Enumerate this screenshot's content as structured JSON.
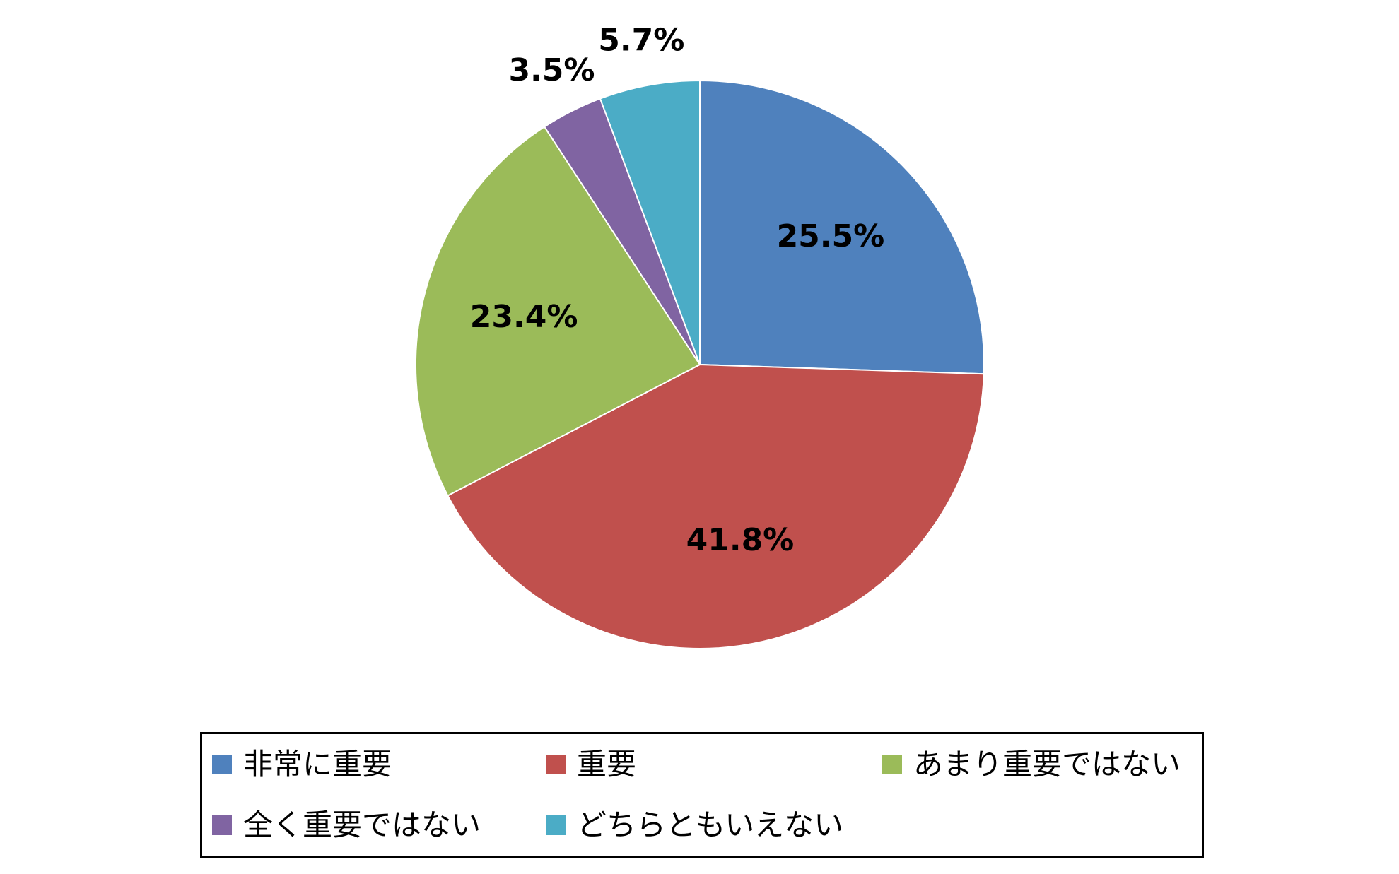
{
  "chart_data": {
    "type": "pie",
    "title": "",
    "start_angle_deg": 0,
    "direction": "clockwise",
    "slices": [
      {
        "label": "非常に重要",
        "value": 25.5,
        "display": "25.5%",
        "color": "#4F81BD"
      },
      {
        "label": "重要",
        "value": 41.8,
        "display": "41.8%",
        "color": "#C0504D"
      },
      {
        "label": "あまり重要ではない",
        "value": 23.4,
        "display": "23.4%",
        "color": "#9BBB59"
      },
      {
        "label": "全く重要ではない",
        "value": 3.5,
        "display": "3.5%",
        "color": "#8064A2"
      },
      {
        "label": "どちらともいえない",
        "value": 5.7,
        "display": "5.7%",
        "color": "#4BACC6"
      }
    ],
    "data_labels": "outside-for-small",
    "legend_position": "bottom"
  }
}
